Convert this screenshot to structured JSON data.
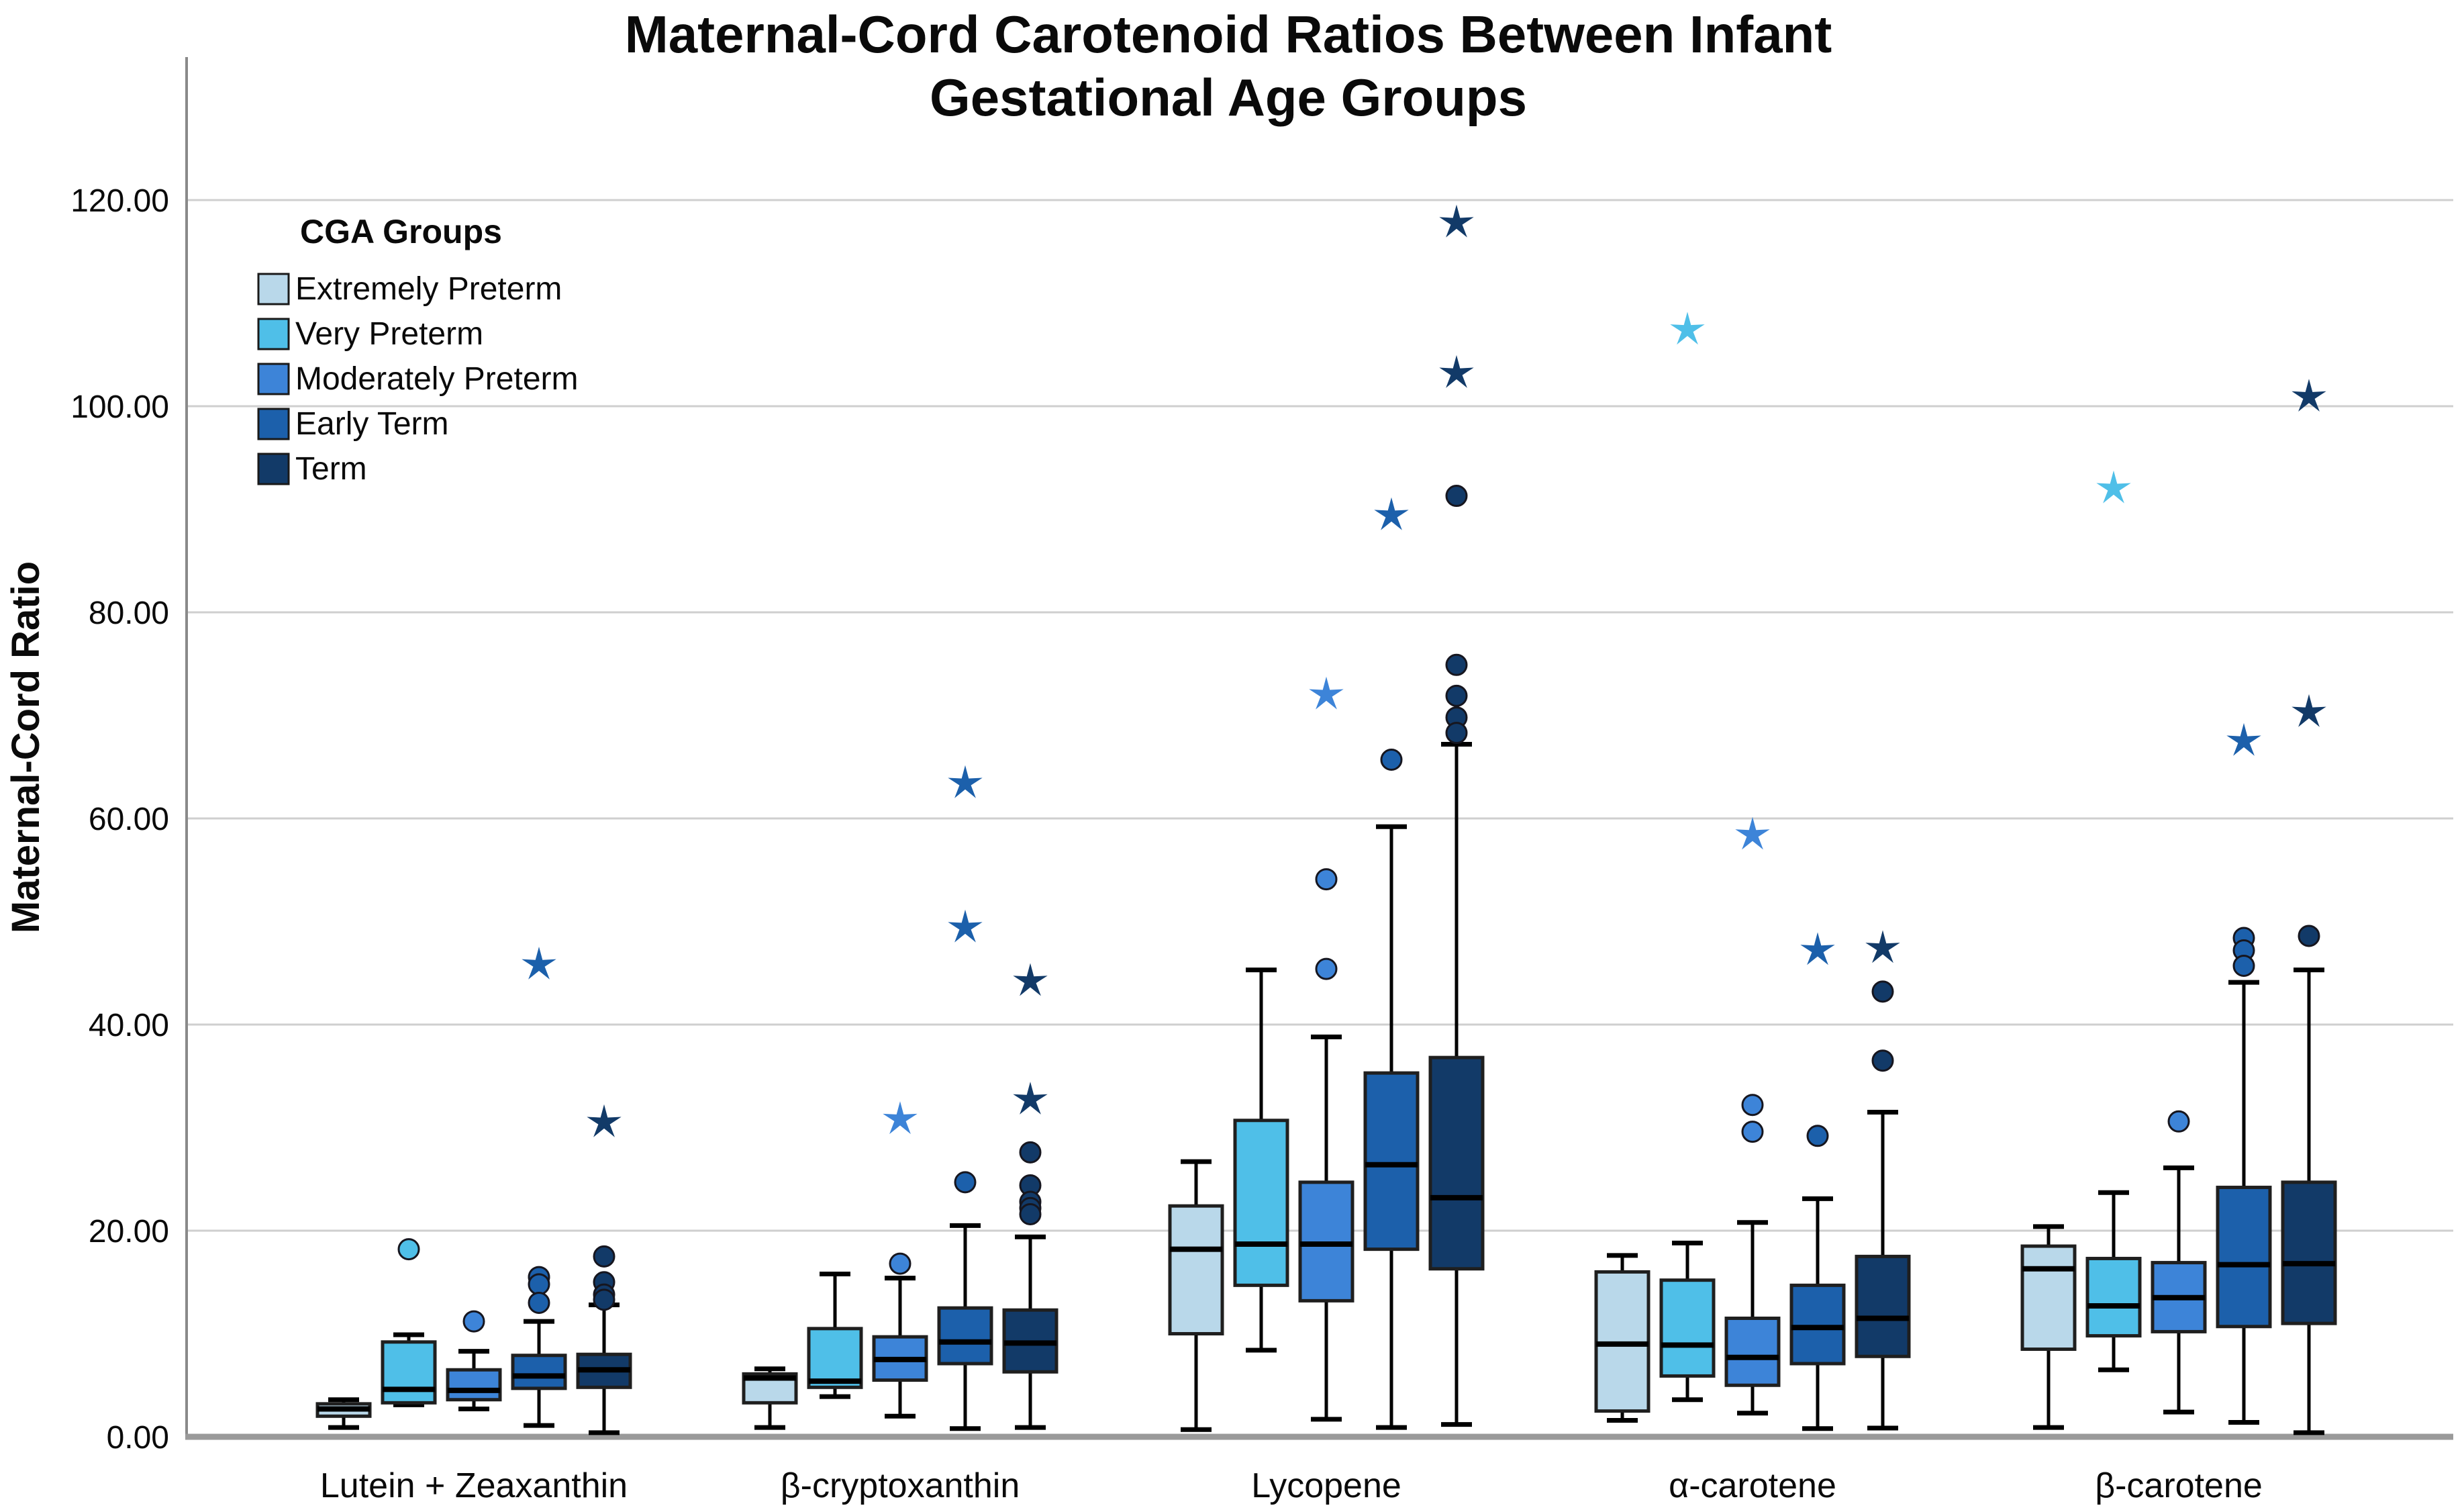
{
  "title": {
    "line1": "Maternal-Cord Carotenoid Ratios Between Infant",
    "line2": "Gestational Age Groups"
  },
  "legend": {
    "title": "CGA Groups",
    "items": [
      "Extremely Preterm",
      "Very Preterm",
      "Moderately Preterm",
      "Early Term",
      "Term"
    ]
  },
  "chart_data": {
    "type": "boxplot",
    "title": "Maternal-Cord Carotenoid Ratios Between Infant Gestational Age Groups",
    "ylabel": "Maternal-Cord Ratio",
    "xlabel": "",
    "ylim": [
      0,
      134
    ],
    "grid": true,
    "legend_position": "top-left-inside",
    "y_ticks": [
      0,
      20,
      40,
      60,
      80,
      100,
      120
    ],
    "y_tick_labels": [
      "0.00",
      "20.00",
      "40.00",
      "60.00",
      "80.00",
      "100.00",
      "120.00"
    ],
    "categories": [
      "Lutein + Zeaxanthin",
      "β-cryptoxanthin",
      "Lycopene",
      "α-carotene",
      "β-carotene"
    ],
    "series": [
      {
        "name": "Extremely Preterm",
        "color": "#b9d8ea",
        "stats": [
          [
            0.9,
            2.0,
            2.7,
            3.2,
            3.6
          ],
          [
            0.9,
            3.3,
            5.7,
            6.1,
            6.6
          ],
          [
            0.7,
            10.0,
            18.2,
            22.4,
            26.7
          ],
          [
            1.6,
            2.5,
            9.0,
            16.0,
            17.6
          ],
          [
            0.9,
            8.5,
            16.3,
            18.5,
            20.4
          ]
        ],
        "circles": [
          [],
          [],
          [],
          [],
          []
        ],
        "stars": [
          [],
          [],
          [],
          [],
          []
        ]
      },
      {
        "name": "Very Preterm",
        "color": "#4fbfe8",
        "stats": [
          [
            3.1,
            3.3,
            4.6,
            9.2,
            9.9
          ],
          [
            3.9,
            4.8,
            5.4,
            10.5,
            15.8
          ],
          [
            8.4,
            14.7,
            18.7,
            30.7,
            45.3
          ],
          [
            3.6,
            5.9,
            8.9,
            15.2,
            18.8
          ],
          [
            6.5,
            9.8,
            12.7,
            17.3,
            23.7
          ]
        ],
        "circles": [
          [
            18.2
          ],
          [],
          [],
          [],
          []
        ],
        "stars": [
          [],
          [],
          [],
          [
            107.4
          ],
          [
            92.0
          ]
        ]
      },
      {
        "name": "Moderately Preterm",
        "color": "#3d84d8",
        "stats": [
          [
            2.7,
            3.6,
            4.5,
            6.5,
            8.3
          ],
          [
            2.0,
            5.5,
            7.5,
            9.7,
            15.4
          ],
          [
            1.7,
            13.2,
            18.7,
            24.7,
            38.8
          ],
          [
            2.3,
            5.0,
            7.7,
            11.5,
            20.8
          ],
          [
            2.4,
            10.2,
            13.5,
            16.9,
            26.1
          ]
        ],
        "circles": [
          [
            11.2
          ],
          [
            16.8
          ],
          [
            54.1,
            45.4
          ],
          [
            32.2,
            29.6
          ],
          [
            30.6
          ]
        ],
        "stars": [
          [],
          [
            30.8
          ],
          [
            72.0
          ],
          [
            58.4
          ],
          []
        ]
      },
      {
        "name": "Early Term",
        "color": "#1c60ab",
        "stats": [
          [
            1.1,
            4.7,
            5.9,
            7.9,
            11.2
          ],
          [
            0.8,
            7.1,
            9.2,
            12.5,
            20.5
          ],
          [
            0.9,
            18.2,
            26.4,
            35.3,
            59.2
          ],
          [
            0.8,
            7.1,
            10.6,
            14.7,
            23.1
          ],
          [
            1.4,
            10.7,
            16.7,
            24.2,
            44.1
          ]
        ],
        "circles": [
          [
            15.5,
            14.8,
            13.0
          ],
          [
            24.7
          ],
          [
            65.7
          ],
          [
            29.2
          ],
          [
            48.4,
            47.2,
            45.7
          ]
        ],
        "stars": [
          [
            45.8
          ],
          [
            63.4,
            49.4
          ],
          [
            89.4
          ],
          [
            47.2
          ],
          [
            67.5
          ]
        ]
      },
      {
        "name": "Term",
        "color": "#123a68",
        "stats": [
          [
            0.4,
            4.8,
            6.5,
            8.0,
            12.8
          ],
          [
            0.9,
            6.3,
            9.1,
            12.3,
            19.4
          ],
          [
            1.2,
            16.3,
            23.2,
            36.8,
            67.2
          ],
          [
            0.85,
            7.8,
            11.5,
            17.5,
            31.5
          ],
          [
            0.4,
            11.0,
            16.8,
            24.7,
            45.3
          ]
        ],
        "circles": [
          [
            17.5,
            15.0,
            13.8,
            13.3
          ],
          [
            27.6,
            24.4,
            22.8,
            22.2,
            21.6
          ],
          [
            91.3,
            74.9,
            71.9,
            69.8,
            68.3
          ],
          [
            43.2,
            36.5
          ],
          [
            48.6
          ]
        ],
        "stars": [
          [
            30.5
          ],
          [
            44.2,
            32.7
          ],
          [
            117.8,
            103.2
          ],
          [
            47.4
          ],
          [
            100.9,
            70.3
          ]
        ]
      }
    ]
  }
}
